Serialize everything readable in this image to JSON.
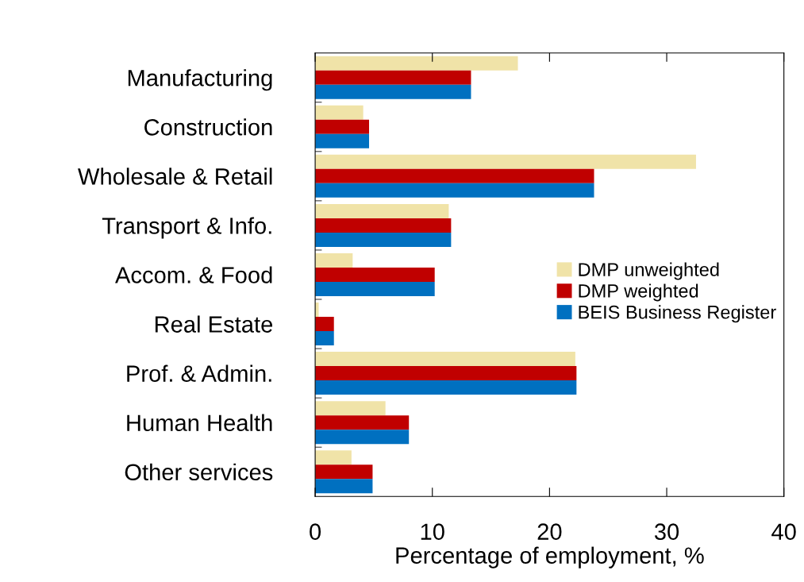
{
  "chart_data": {
    "type": "bar",
    "orientation": "horizontal",
    "xlabel": "Percentage of employment, %",
    "categories": [
      "Manufacturing",
      "Construction",
      "Wholesale & Retail",
      "Transport & Info.",
      "Accom. & Food",
      "Real Estate",
      "Prof. & Admin.",
      "Human Health",
      "Other services"
    ],
    "series": [
      {
        "name": "DMP unweighted",
        "color": "#f0e3a8",
        "values": [
          17.3,
          4.1,
          32.5,
          11.4,
          3.2,
          0.3,
          22.2,
          6.0,
          3.1
        ]
      },
      {
        "name": "DMP weighted",
        "color": "#c00000",
        "values": [
          13.3,
          4.6,
          23.8,
          11.6,
          10.2,
          1.6,
          22.3,
          8.0,
          4.9
        ]
      },
      {
        "name": "BEIS Business Register",
        "color": "#0070c0",
        "values": [
          13.3,
          4.6,
          23.8,
          11.6,
          10.2,
          1.6,
          22.3,
          8.0,
          4.9
        ]
      }
    ],
    "xlim": [
      0,
      40
    ],
    "xticks": [
      0,
      10,
      20,
      30,
      40
    ],
    "grid": false,
    "legend": "right"
  }
}
